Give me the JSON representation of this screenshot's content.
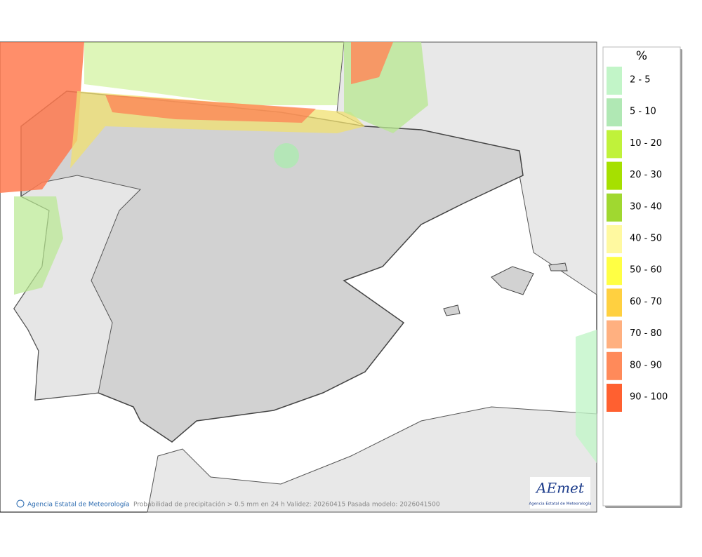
{
  "map": {
    "footer": {
      "credit": "Agencia Estatal de Meteorología",
      "caption": "Probabilidad de precipitación > 0.5 mm en 24 h Validez: 20260415 Pasada modelo: 2026041500"
    },
    "logo": {
      "name": "AEmet",
      "subtitle": "Agencia Estatal de Meteorología"
    }
  },
  "legend": {
    "title": "%",
    "items": [
      {
        "label": "2 - 5",
        "color": "#c2f5c8"
      },
      {
        "label": "5 - 10",
        "color": "#b0e8b4"
      },
      {
        "label": "10 - 20",
        "color": "#c0f23a"
      },
      {
        "label": "20 - 30",
        "color": "#a6e000"
      },
      {
        "label": "30 - 40",
        "color": "#a0d830"
      },
      {
        "label": "40 - 50",
        "color": "#fff9a0"
      },
      {
        "label": "50 - 60",
        "color": "#ffff44"
      },
      {
        "label": "60 - 70",
        "color": "#ffd040"
      },
      {
        "label": "70 - 80",
        "color": "#ffb080"
      },
      {
        "label": "80 - 90",
        "color": "#ff8a5a"
      },
      {
        "label": "90 - 100",
        "color": "#ff6030"
      }
    ]
  }
}
